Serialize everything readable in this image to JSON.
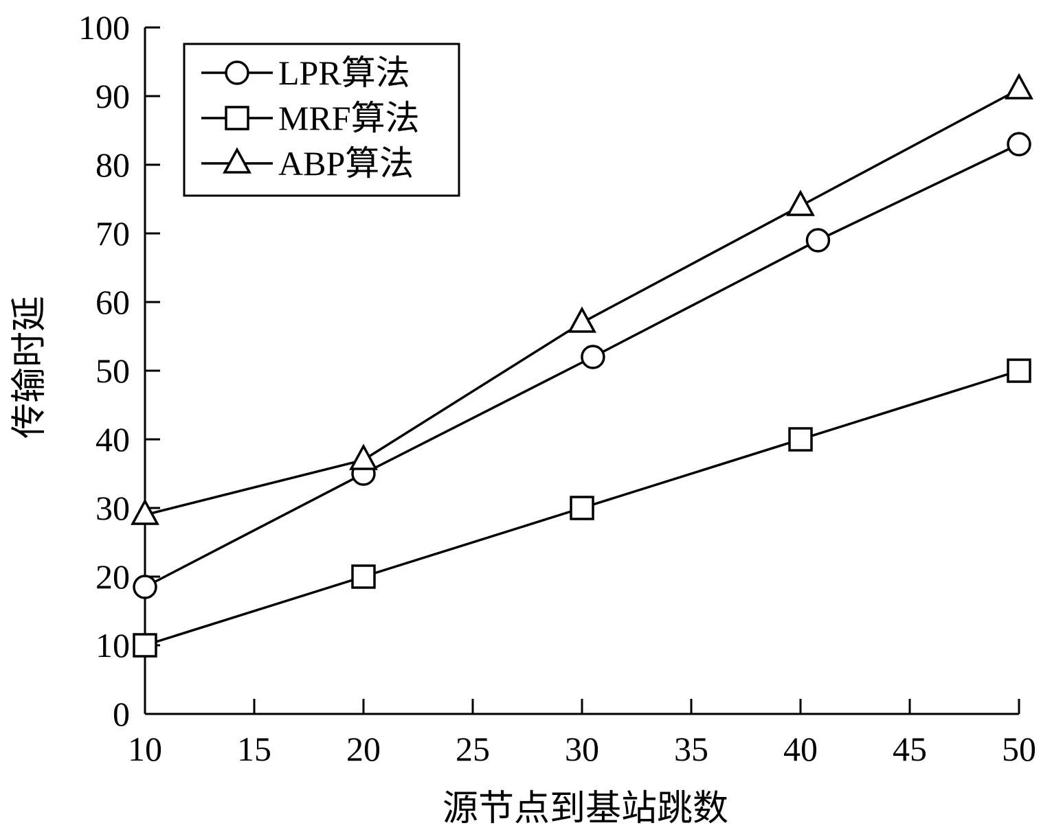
{
  "chart_data": {
    "type": "line",
    "xlabel": "源节点到基站跳数",
    "ylabel": "传输时延",
    "xlim": [
      10,
      50
    ],
    "ylim": [
      0,
      100
    ],
    "xticks": [
      10,
      15,
      20,
      25,
      30,
      35,
      40,
      45,
      50
    ],
    "yticks": [
      0,
      10,
      20,
      30,
      40,
      50,
      60,
      70,
      80,
      90,
      100
    ],
    "grid": false,
    "legend_position": "top-left",
    "series": [
      {
        "name": "LPR算法",
        "marker": "circle",
        "x": [
          10,
          20,
          30.5,
          40.8,
          50
        ],
        "y": [
          18.5,
          35,
          52,
          69,
          83
        ]
      },
      {
        "name": "MRF算法",
        "marker": "square",
        "x": [
          10,
          20,
          30,
          40,
          50
        ],
        "y": [
          10,
          20,
          30,
          40,
          50
        ]
      },
      {
        "name": "ABP算法",
        "marker": "triangle",
        "x": [
          10,
          20,
          30,
          40,
          50
        ],
        "y": [
          29,
          37,
          57,
          74,
          91
        ]
      }
    ]
  }
}
